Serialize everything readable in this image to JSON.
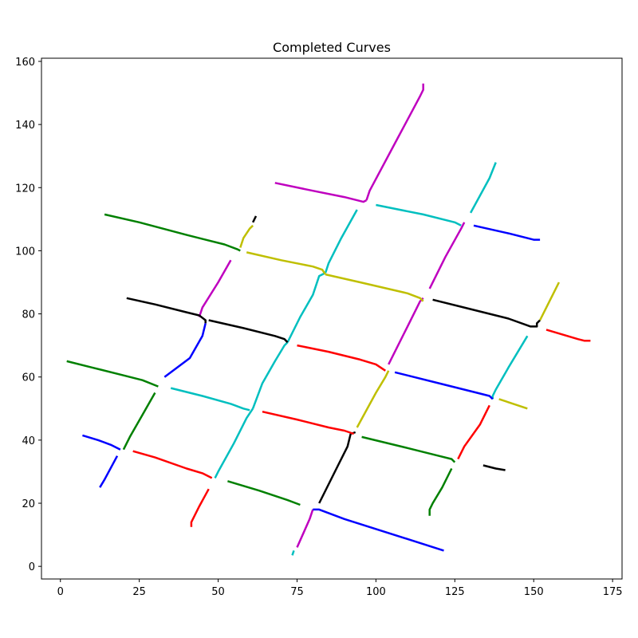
{
  "chart_data": {
    "type": "line",
    "title": "Completed Curves",
    "xlabel": "",
    "ylabel": "",
    "xlim": [
      -6,
      178
    ],
    "ylim": [
      -4,
      161
    ],
    "xticks": [
      0,
      25,
      50,
      75,
      100,
      125,
      150,
      175
    ],
    "yticks": [
      0,
      20,
      40,
      60,
      80,
      100,
      120,
      140,
      160
    ],
    "grid": false,
    "series": [
      {
        "color": "#00bfbf",
        "points": [
          [
            73.5,
            3.5
          ],
          [
            74,
            5
          ]
        ]
      },
      {
        "color": "#bf00bf",
        "points": [
          [
            75,
            6
          ],
          [
            79,
            15
          ],
          [
            80,
            18
          ]
        ]
      },
      {
        "color": "#0000ff",
        "points": [
          [
            80,
            18
          ],
          [
            82,
            18
          ],
          [
            90,
            15
          ],
          [
            121.5,
            5
          ]
        ]
      },
      {
        "color": "#000000",
        "points": [
          [
            82,
            20
          ],
          [
            88,
            32
          ],
          [
            91,
            38
          ],
          [
            92,
            42
          ],
          [
            93.5,
            42.5
          ]
        ]
      },
      {
        "color": "#008000",
        "points": [
          [
            95.5,
            41
          ],
          [
            110,
            37.5
          ],
          [
            120,
            35
          ],
          [
            124,
            34
          ],
          [
            125,
            33
          ]
        ]
      },
      {
        "color": "#008000",
        "points": [
          [
            117,
            16
          ],
          [
            117,
            18
          ],
          [
            118,
            20
          ],
          [
            121,
            25
          ],
          [
            124,
            31
          ]
        ]
      },
      {
        "color": "#ff0000",
        "points": [
          [
            126,
            34
          ],
          [
            128,
            38
          ],
          [
            133,
            45
          ],
          [
            136,
            51
          ]
        ]
      },
      {
        "color": "#000000",
        "points": [
          [
            134,
            32
          ],
          [
            138,
            31
          ],
          [
            141,
            30.5
          ]
        ]
      },
      {
        "color": "#00bfbf",
        "points": [
          [
            137,
            53
          ],
          [
            137,
            54
          ],
          [
            138,
            56
          ],
          [
            142,
            63
          ],
          [
            148,
            73
          ]
        ]
      },
      {
        "color": "#bfbf00",
        "points": [
          [
            139,
            53
          ],
          [
            148,
            50
          ]
        ]
      },
      {
        "color": "#0000ff",
        "points": [
          [
            106,
            61.5
          ],
          [
            120,
            58
          ],
          [
            132,
            55
          ],
          [
            136,
            54
          ],
          [
            137,
            53
          ]
        ]
      },
      {
        "color": "#bfbf00",
        "points": [
          [
            94,
            44
          ],
          [
            100,
            55
          ],
          [
            103,
            60
          ],
          [
            104,
            62
          ]
        ]
      },
      {
        "color": "#bf00bf",
        "points": [
          [
            104,
            64
          ],
          [
            110,
            76
          ],
          [
            114,
            84
          ],
          [
            115,
            85
          ]
        ]
      },
      {
        "color": "#bfbf00",
        "points": [
          [
            84,
            92.5
          ],
          [
            95,
            90
          ],
          [
            110,
            86.5
          ],
          [
            114,
            85
          ],
          [
            115,
            84
          ]
        ]
      },
      {
        "color": "#000000",
        "points": [
          [
            118,
            84.5
          ],
          [
            130,
            81.5
          ],
          [
            142,
            78.5
          ],
          [
            149,
            76
          ],
          [
            151,
            76
          ],
          [
            151,
            77
          ],
          [
            152,
            78
          ]
        ]
      },
      {
        "color": "#bfbf00",
        "points": [
          [
            152,
            78
          ],
          [
            156,
            86
          ],
          [
            158,
            90
          ]
        ]
      },
      {
        "color": "#ff0000",
        "points": [
          [
            154,
            75
          ],
          [
            164,
            72
          ],
          [
            166,
            71.5
          ],
          [
            168,
            71.5
          ]
        ]
      },
      {
        "color": "#bf00bf",
        "points": [
          [
            117,
            88
          ],
          [
            122,
            98
          ],
          [
            127,
            107
          ],
          [
            128,
            109
          ]
        ]
      },
      {
        "color": "#00bfbf",
        "points": [
          [
            100,
            114.5
          ],
          [
            115,
            111.5
          ],
          [
            125,
            109
          ],
          [
            127,
            108
          ]
        ]
      },
      {
        "color": "#0000ff",
        "points": [
          [
            131,
            108
          ],
          [
            142,
            105.5
          ],
          [
            150,
            103.5
          ],
          [
            152,
            103.5
          ]
        ]
      },
      {
        "color": "#00bfbf",
        "points": [
          [
            130,
            112
          ],
          [
            136,
            123
          ],
          [
            138,
            128
          ]
        ]
      },
      {
        "color": "#bf00bf",
        "points": [
          [
            68,
            121.5
          ],
          [
            80,
            119
          ],
          [
            90,
            117
          ],
          [
            94,
            116
          ],
          [
            96,
            115.5
          ],
          [
            97,
            116
          ]
        ]
      },
      {
        "color": "#bf00bf",
        "points": [
          [
            97,
            116
          ],
          [
            98,
            119
          ],
          [
            106,
            134
          ],
          [
            114,
            149
          ],
          [
            115,
            151
          ],
          [
            115,
            153
          ]
        ]
      },
      {
        "color": "#00bfbf",
        "points": [
          [
            61,
            50
          ],
          [
            64,
            58
          ],
          [
            68,
            65
          ],
          [
            71,
            70
          ],
          [
            72,
            71
          ]
        ]
      },
      {
        "color": "#00bfbf",
        "points": [
          [
            72,
            71
          ],
          [
            76,
            79
          ],
          [
            80,
            86
          ],
          [
            82,
            92
          ],
          [
            84,
            93
          ]
        ]
      },
      {
        "color": "#00bfbf",
        "points": [
          [
            84,
            93
          ],
          [
            85,
            96
          ],
          [
            89,
            104
          ],
          [
            94,
            113
          ]
        ]
      },
      {
        "color": "#ff0000",
        "points": [
          [
            75,
            70
          ],
          [
            85,
            68
          ],
          [
            95,
            65.5
          ],
          [
            100,
            64
          ],
          [
            103,
            62
          ]
        ]
      },
      {
        "color": "#000000",
        "points": [
          [
            47,
            78
          ],
          [
            58,
            75.5
          ],
          [
            68,
            73
          ],
          [
            71,
            72
          ],
          [
            72,
            71
          ]
        ]
      },
      {
        "color": "#bfbf00",
        "points": [
          [
            59,
            99.5
          ],
          [
            70,
            97
          ],
          [
            80,
            95
          ],
          [
            83,
            94
          ],
          [
            84,
            92.5
          ]
        ]
      },
      {
        "color": "#bfbf00",
        "points": [
          [
            57,
            101
          ],
          [
            58,
            104
          ],
          [
            60,
            107
          ],
          [
            61,
            108
          ]
        ]
      },
      {
        "color": "#000000",
        "points": [
          [
            61,
            109
          ],
          [
            62,
            111
          ]
        ]
      },
      {
        "color": "#008000",
        "points": [
          [
            14,
            111.5
          ],
          [
            25,
            109
          ],
          [
            40,
            105
          ],
          [
            52,
            102
          ],
          [
            56,
            100.5
          ],
          [
            57,
            100
          ]
        ]
      },
      {
        "color": "#bf00bf",
        "points": [
          [
            44,
            79
          ],
          [
            45,
            82
          ],
          [
            50,
            90
          ],
          [
            54,
            97
          ]
        ]
      },
      {
        "color": "#000000",
        "points": [
          [
            21,
            85
          ],
          [
            30,
            83
          ],
          [
            40,
            80.5
          ],
          [
            44,
            79.5
          ],
          [
            46,
            78
          ],
          [
            46,
            77
          ]
        ]
      },
      {
        "color": "#0000ff",
        "points": [
          [
            46,
            77
          ],
          [
            45,
            73
          ],
          [
            41,
            66
          ],
          [
            33,
            60
          ]
        ]
      },
      {
        "color": "#008000",
        "points": [
          [
            2,
            65
          ],
          [
            10,
            63
          ],
          [
            20,
            60.5
          ],
          [
            26,
            59
          ],
          [
            31,
            57
          ]
        ]
      },
      {
        "color": "#00bfbf",
        "points": [
          [
            35,
            56.5
          ],
          [
            45,
            54
          ],
          [
            54,
            51.5
          ],
          [
            58,
            50
          ],
          [
            60,
            49.5
          ]
        ]
      },
      {
        "color": "#00bfbf",
        "points": [
          [
            49,
            28
          ],
          [
            50,
            30
          ],
          [
            55,
            39
          ],
          [
            59,
            47
          ],
          [
            61,
            50
          ]
        ]
      },
      {
        "color": "#ff0000",
        "points": [
          [
            64,
            49
          ],
          [
            75,
            46.5
          ],
          [
            85,
            44
          ],
          [
            90,
            43
          ],
          [
            93,
            42
          ]
        ]
      },
      {
        "color": "#008000",
        "points": [
          [
            30,
            55
          ],
          [
            26,
            48
          ],
          [
            22,
            41
          ],
          [
            20,
            37
          ]
        ]
      },
      {
        "color": "#0000ff",
        "points": [
          [
            7,
            41.5
          ],
          [
            12,
            40
          ],
          [
            16,
            38.5
          ],
          [
            19,
            37
          ]
        ]
      },
      {
        "color": "#0000ff",
        "points": [
          [
            12.5,
            25
          ],
          [
            14,
            27.5
          ],
          [
            18,
            35
          ]
        ]
      },
      {
        "color": "#ff0000",
        "points": [
          [
            23,
            36.5
          ],
          [
            30,
            34.5
          ],
          [
            40,
            31
          ],
          [
            45,
            29.5
          ],
          [
            48,
            28
          ]
        ]
      },
      {
        "color": "#ff0000",
        "points": [
          [
            41.5,
            12.5
          ],
          [
            41.5,
            14
          ],
          [
            44,
            19
          ],
          [
            47,
            24.5
          ]
        ]
      },
      {
        "color": "#008000",
        "points": [
          [
            53,
            27
          ],
          [
            63,
            24
          ],
          [
            72,
            21
          ],
          [
            76,
            19.5
          ]
        ]
      }
    ]
  }
}
